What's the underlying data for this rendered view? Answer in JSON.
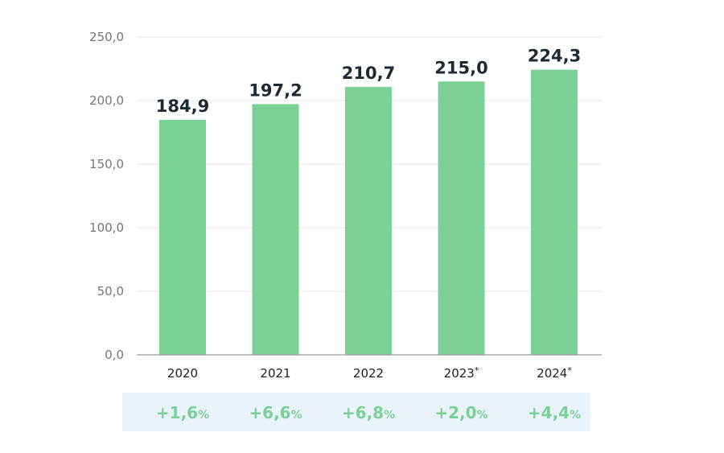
{
  "chart_data": {
    "type": "bar",
    "categories": [
      "2020",
      "2021",
      "2022",
      "2023",
      "2024"
    ],
    "category_suffixes": [
      "",
      "",
      "",
      "*",
      "*"
    ],
    "values": [
      184.9,
      197.2,
      210.7,
      215.0,
      224.3
    ],
    "value_labels": [
      "184,9",
      "197,2",
      "210,7",
      "215,0",
      "224,3"
    ],
    "ylim": [
      0,
      250
    ],
    "y_ticks": [
      0,
      50,
      100,
      150,
      200,
      250
    ],
    "y_tick_labels": [
      "0,0",
      "50,0",
      "100,0",
      "150,0",
      "200,0",
      "250,0"
    ],
    "grid": true,
    "title": "",
    "xlabel": "",
    "ylabel": "",
    "growth": {
      "values": [
        "+1,6",
        "+6,6",
        "+6,8",
        "+2,0",
        "+4,4"
      ],
      "unit": "%"
    }
  },
  "colors": {
    "bar": "#7bd096",
    "grid": "#e6e6e6",
    "axis": "#999999",
    "growth_band": "#eaf3fb",
    "growth_text": "#7bd096"
  }
}
